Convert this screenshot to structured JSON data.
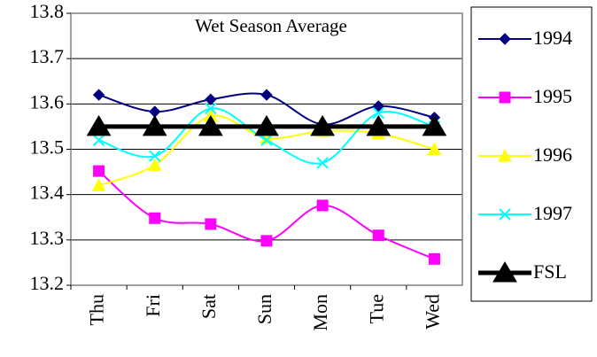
{
  "chart_data": {
    "type": "line",
    "title": "Wet Season Average",
    "categories": [
      "Thu",
      "Fri",
      "Sat",
      "Sun",
      "Mon",
      "Tue",
      "Wed"
    ],
    "series": [
      {
        "name": "1994",
        "color": "#000080",
        "marker": "diamond",
        "values": [
          13.62,
          13.583,
          13.61,
          13.62,
          13.555,
          13.595,
          13.57
        ]
      },
      {
        "name": "1995",
        "color": "#ff00ff",
        "marker": "square",
        "values": [
          13.452,
          13.348,
          13.335,
          13.298,
          13.376,
          13.31,
          13.258
        ]
      },
      {
        "name": "1996",
        "color": "#ffff00",
        "marker": "triangle",
        "values": [
          13.42,
          13.465,
          13.573,
          13.525,
          13.54,
          13.535,
          13.5
        ]
      },
      {
        "name": "1997",
        "color": "#00ffff",
        "marker": "x",
        "values": [
          13.52,
          13.485,
          13.59,
          13.52,
          13.47,
          13.58,
          13.55
        ]
      },
      {
        "name": "FSL",
        "color": "#000000",
        "marker": "big-triangle",
        "values": [
          13.55,
          13.55,
          13.55,
          13.55,
          13.55,
          13.55,
          13.55
        ]
      }
    ],
    "ylim": [
      13.2,
      13.8
    ],
    "yticks": [
      13.2,
      13.3,
      13.4,
      13.5,
      13.6,
      13.7,
      13.8
    ],
    "grid": true,
    "legend": "right"
  }
}
